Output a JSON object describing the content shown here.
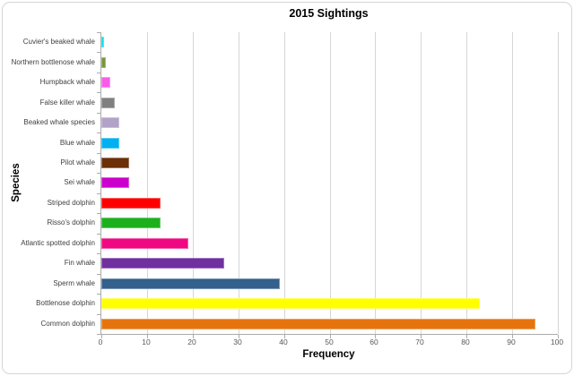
{
  "chart_data": {
    "type": "bar",
    "orientation": "horizontal",
    "title": "2015 Sightings",
    "xlabel": "Frequency",
    "ylabel": "Species",
    "xlim": [
      0,
      100
    ],
    "xticks": [
      0,
      10,
      20,
      30,
      40,
      50,
      60,
      70,
      80,
      90,
      100
    ],
    "grid": "vertical-only",
    "legend": "none",
    "categories": [
      "Cuvier's beaked whale",
      "Northern bottlenose whale",
      "Humpback whale",
      "False killer whale",
      "Beaked whale species",
      "Blue whale",
      "Pilot whale",
      "Sei whale",
      "Striped dolphin",
      "Risso's dolphin",
      "Atlantic spotted dolphin",
      "Fin whale",
      "Sperm whale",
      "Bottlenose dolphin",
      "Common dolphin"
    ],
    "values": [
      0.5,
      1,
      2,
      3,
      4,
      4,
      6,
      6,
      13,
      13,
      19,
      27,
      39,
      83,
      95
    ],
    "bar_colors": [
      "#00DEE9",
      "#7A9439",
      "#F95CE8",
      "#808080",
      "#B3A2C7",
      "#00B0F0",
      "#6B3007",
      "#CC00CC",
      "#FE0000",
      "#1DB01D",
      "#F00882",
      "#7030A0",
      "#33608C",
      "#FFFF00",
      "#E6740E"
    ]
  },
  "style_colors": {
    "background": "#FFFFFF",
    "frame_border": "#D5D5D5",
    "gridline": "#D6D6D6",
    "axis_line": "#ABABAB",
    "tick_label": "#595959",
    "category_label": "#3F3F3F",
    "title_text": "#000000"
  }
}
